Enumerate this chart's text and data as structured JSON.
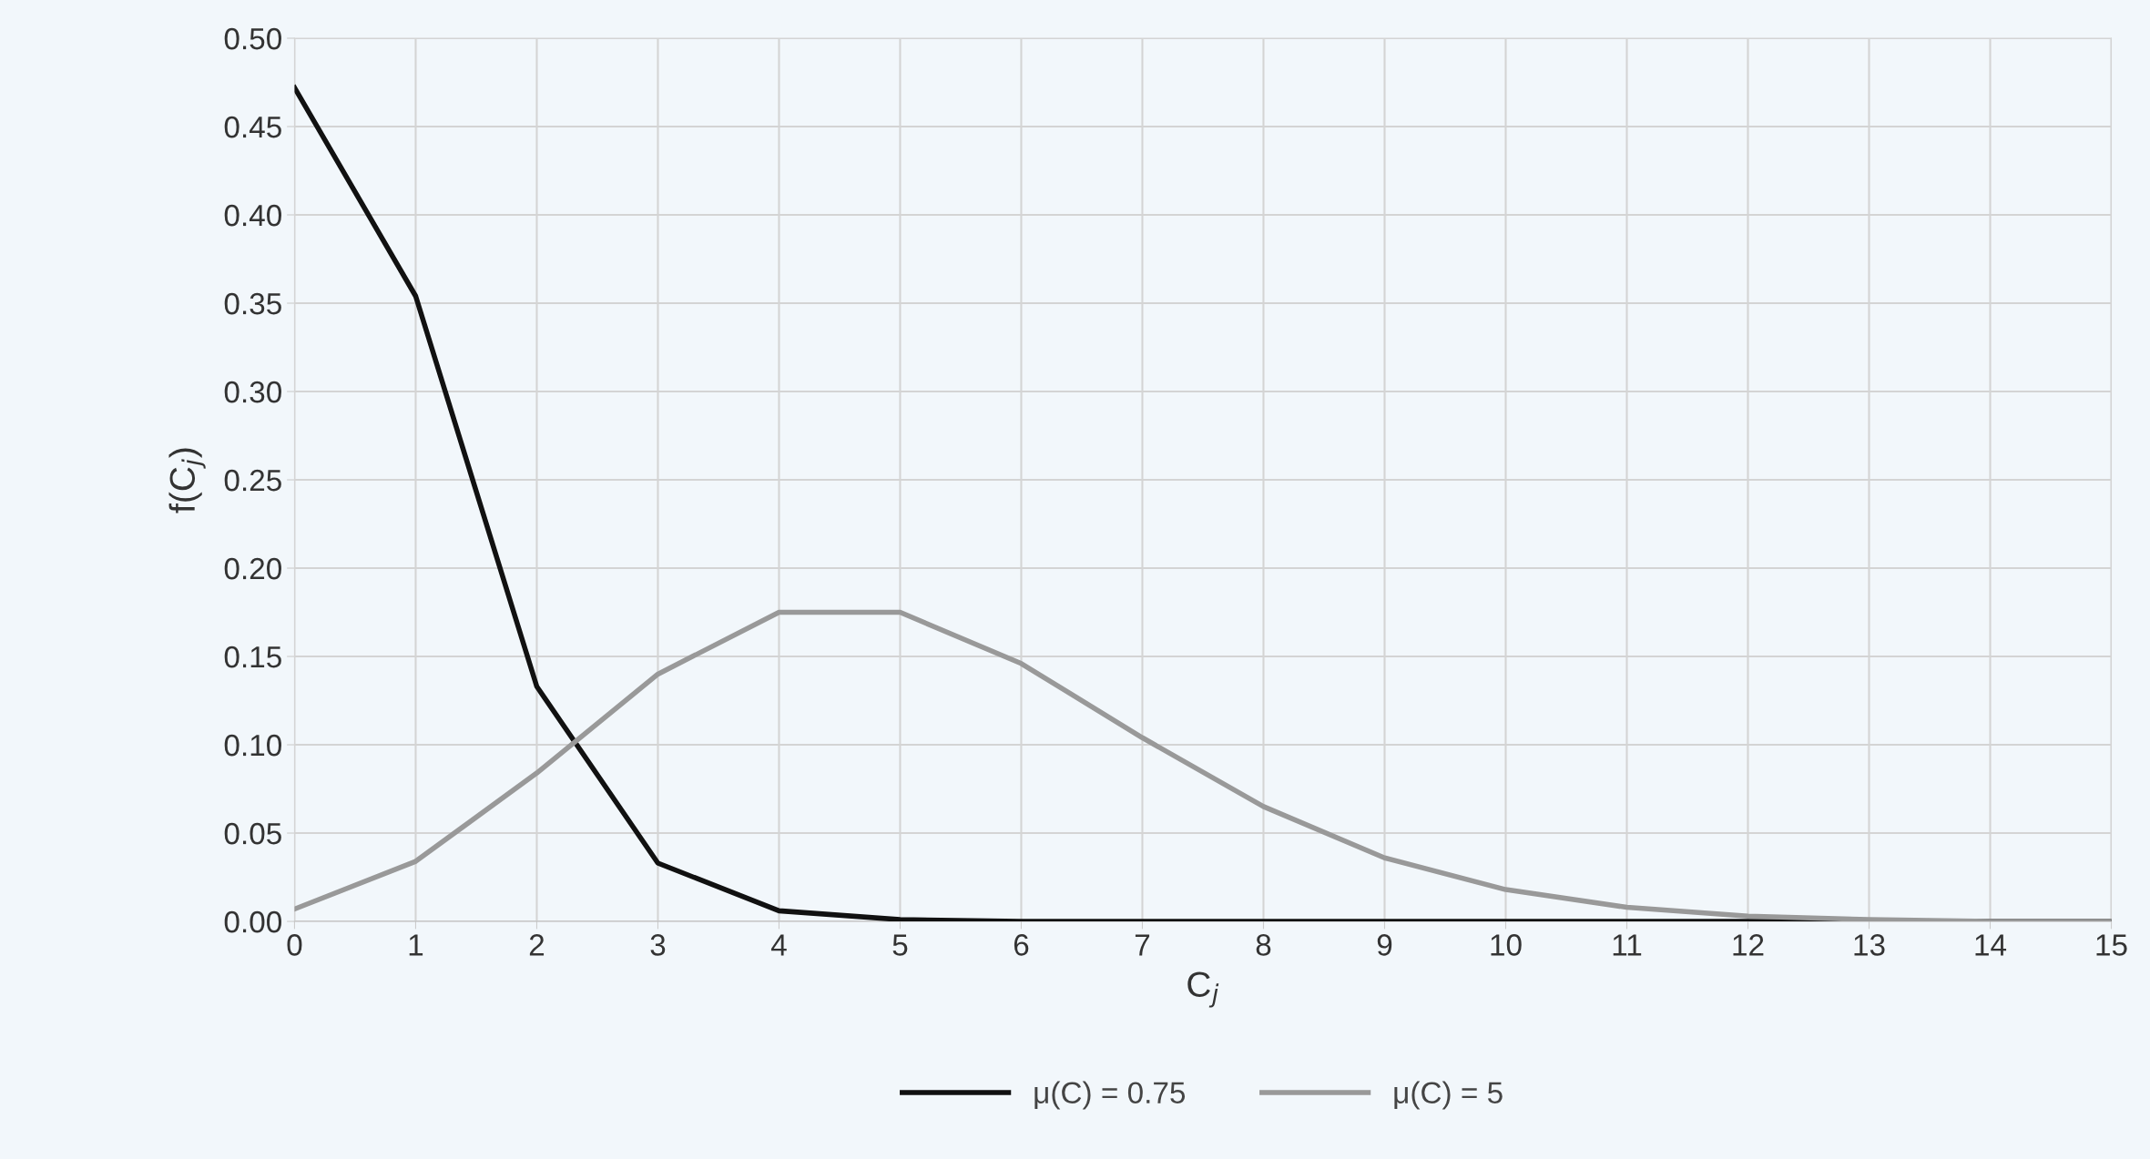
{
  "chart_data": {
    "type": "line",
    "xlabel": "C$_{j}$",
    "ylabel": "f(C$_{j}$)",
    "x": [
      0,
      1,
      2,
      3,
      4,
      5,
      6,
      7,
      8,
      9,
      10,
      11,
      12,
      13,
      14,
      15
    ],
    "series": [
      {
        "name": "μ(C) = 0.75",
        "color": "#111111",
        "values": [
          0.472,
          0.354,
          0.133,
          0.033,
          0.006,
          0.001,
          0.0,
          0.0,
          0.0,
          0.0,
          0.0,
          0.0,
          0.0,
          0.0,
          0.0,
          0.0
        ]
      },
      {
        "name": "μ(C) = 5",
        "color": "#999999",
        "values": [
          0.007,
          0.034,
          0.084,
          0.14,
          0.175,
          0.175,
          0.146,
          0.104,
          0.065,
          0.036,
          0.018,
          0.008,
          0.003,
          0.001,
          0.0,
          0.0
        ]
      }
    ],
    "xlim": [
      0,
      15
    ],
    "xticks": [
      0,
      1,
      2,
      3,
      4,
      5,
      6,
      7,
      8,
      9,
      10,
      11,
      12,
      13,
      14,
      15
    ],
    "ylim": [
      0,
      0.5
    ],
    "yticks": [
      {
        "value": 0,
        "label": "0.00"
      },
      {
        "value": 0.05,
        "label": "0.05"
      },
      {
        "value": 0.1,
        "label": "0.10"
      },
      {
        "value": 0.15,
        "label": "0.15"
      },
      {
        "value": 0.2,
        "label": "0.20"
      },
      {
        "value": 0.25,
        "label": "0.25"
      },
      {
        "value": 0.3,
        "label": "0.30"
      },
      {
        "value": 0.35,
        "label": "0.35"
      },
      {
        "value": 0.4,
        "label": "0.40"
      },
      {
        "value": 0.45,
        "label": "0.45"
      },
      {
        "value": 0.5,
        "label": "0.50"
      }
    ],
    "grid": true,
    "legend": "bottom",
    "marker": "none",
    "line_style": "solid"
  }
}
